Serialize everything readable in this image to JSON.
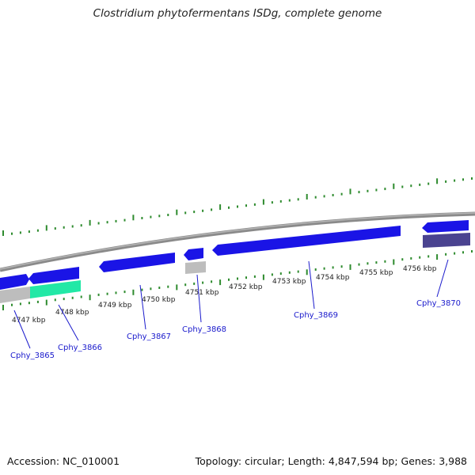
{
  "title": "Clostridium phytofermentans ISDg, complete genome",
  "footer": {
    "accession": "Accession: NC_010001",
    "summary": "Topology: circular; Length: 4,847,594 bp; Genes: 3,988"
  },
  "colors": {
    "backbone": "#8a8a8a",
    "forward_gene": "#1a14e6",
    "reverse_gene": "#1a14e6",
    "pseudo_gray": "#bdbdbd",
    "teal_gene": "#22e8a6",
    "dark_gene": "#4a4390",
    "tick": "#2e8b2e",
    "label": "#1a1acc"
  },
  "kbp_labels": [
    "4747 kbp",
    "4748 kbp",
    "4749 kbp",
    "4750 kbp",
    "4751 kbp",
    "4752 kbp",
    "4753 kbp",
    "4754 kbp",
    "4755 kbp",
    "4756 kbp"
  ],
  "gene_labels": [
    "Cphy_3865",
    "Cphy_3866",
    "Cphy_3867",
    "Cphy_3868",
    "Cphy_3869",
    "Cphy_3870"
  ]
}
